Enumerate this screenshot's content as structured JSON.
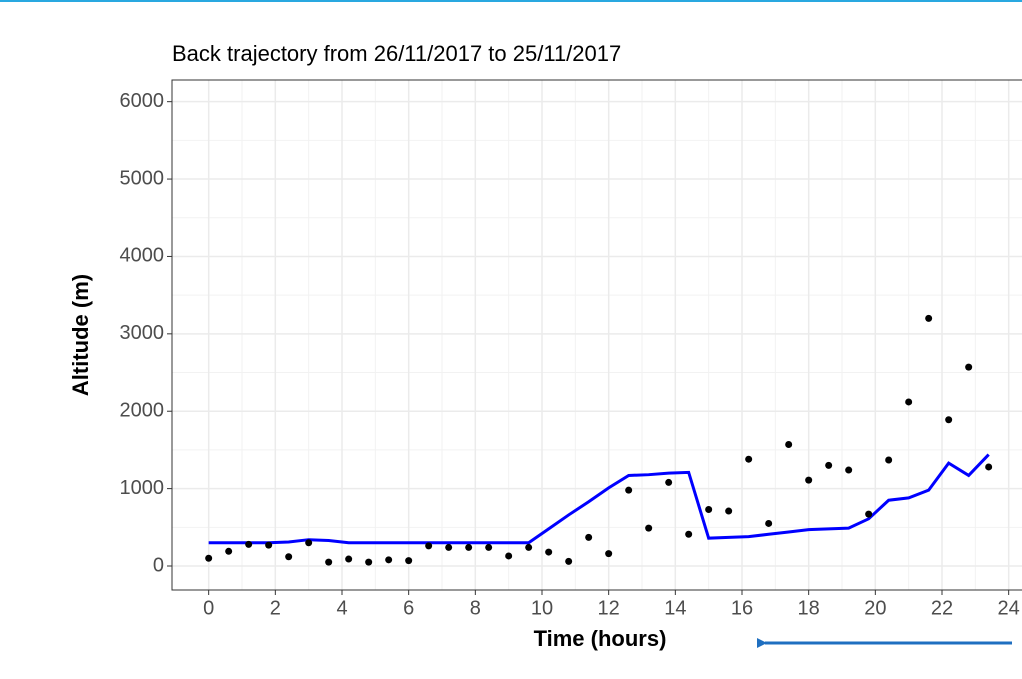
{
  "chart_data": {
    "type": "line",
    "title": "Back trajectory from 26/11/2017 to 25/11/2017",
    "x_label": "Time (hours)",
    "y_label": "Altitude (m)",
    "x": [
      0,
      0.6,
      1.2,
      1.8,
      2.4,
      3.0,
      3.6,
      4.2,
      4.8,
      5.4,
      6.0,
      6.6,
      7.2,
      7.8,
      8.4,
      9.0,
      9.6,
      10.2,
      10.8,
      11.4,
      12.0,
      12.6,
      13.2,
      13.8,
      14.4,
      15.0,
      15.6,
      16.2,
      16.8,
      17.4,
      18.0,
      18.6,
      19.2,
      19.8,
      20.4,
      21.0,
      21.6,
      22.2,
      22.8,
      23.4
    ],
    "series": [
      {
        "mode": "lines",
        "color": "#0000ff",
        "values": [
          300,
          300,
          300,
          300,
          310,
          340,
          330,
          300,
          300,
          300,
          300,
          300,
          300,
          300,
          300,
          300,
          300,
          480,
          660,
          830,
          1010,
          1170,
          1180,
          1200,
          1210,
          360,
          370,
          380,
          410,
          440,
          470,
          480,
          490,
          610,
          850,
          880,
          980,
          1330,
          1170,
          1440
        ]
      },
      {
        "mode": "points",
        "color": "#000000",
        "values": [
          100,
          190,
          280,
          270,
          120,
          300,
          50,
          90,
          50,
          80,
          70,
          260,
          240,
          240,
          240,
          130,
          240,
          180,
          60,
          370,
          160,
          980,
          490,
          1080,
          410,
          730,
          710,
          1380,
          550,
          1570,
          1110,
          1300,
          1240,
          670,
          1370,
          2120,
          3200,
          1890,
          2570,
          1280
        ]
      }
    ],
    "xlim": [
      -1.1,
      25
    ],
    "xticks": [
      0,
      2,
      4,
      6,
      8,
      10,
      12,
      14,
      16,
      18,
      20,
      22,
      24
    ],
    "ylim": [
      -310,
      6280
    ],
    "yticks": [
      0,
      1000,
      2000,
      3000,
      4000,
      5000,
      6000
    ],
    "grid": true
  }
}
